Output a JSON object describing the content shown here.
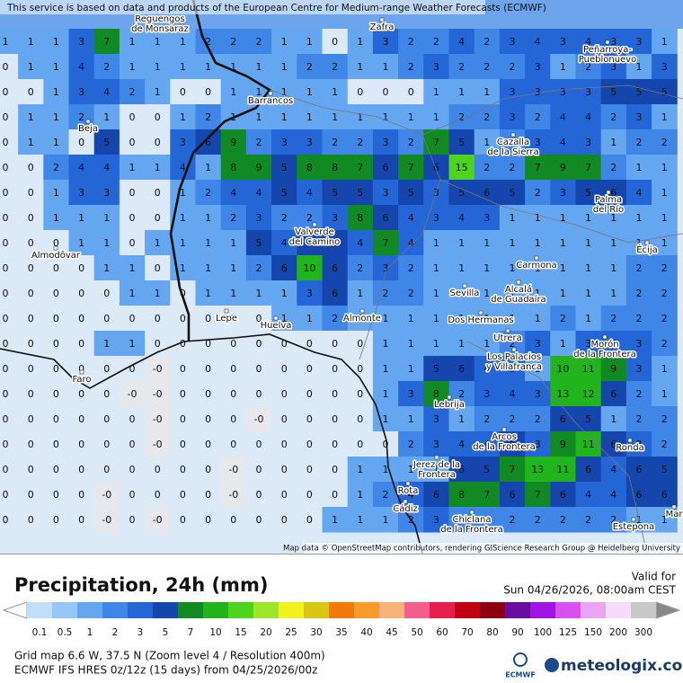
{
  "header": {
    "notice": "This service is based on data and products of the European Centre for Medium-range Weather Forecasts (ECMWF)"
  },
  "map": {
    "attribution": "Map data © OpenStreetMap contributors, rendering GIScience Research Group @ Heidelberg University",
    "grid": [
      [
        "1",
        "1",
        "1",
        "3",
        "7",
        "1",
        "1",
        "1",
        "2",
        "2",
        "2",
        "1",
        "1",
        "0",
        "1",
        "3",
        "2",
        "2",
        "4",
        "2",
        "3",
        "4",
        "3",
        "4",
        "3",
        "3",
        "1"
      ],
      [
        "0",
        "1",
        "1",
        "4",
        "2",
        "1",
        "1",
        "1",
        "1",
        "1",
        "1",
        "1",
        "2",
        "2",
        "1",
        "1",
        "2",
        "3",
        "2",
        "2",
        "2",
        "3",
        "1",
        "2",
        "3",
        "1",
        "3"
      ],
      [
        "0",
        "0",
        "1",
        "3",
        "4",
        "2",
        "1",
        "0",
        "0",
        "1",
        "1",
        "1",
        "1",
        "1",
        "0",
        "0",
        "0",
        "1",
        "1",
        "1",
        "3",
        "3",
        "3",
        "3",
        "5",
        "5",
        "5"
      ],
      [
        "0",
        "1",
        "1",
        "2",
        "1",
        "0",
        "0",
        "1",
        "2",
        "1",
        "1",
        "1",
        "1",
        "1",
        "1",
        "1",
        "1",
        "1",
        "2",
        "2",
        "3",
        "2",
        "4",
        "4",
        "2",
        "3",
        "1"
      ],
      [
        "0",
        "1",
        "1",
        "0",
        "5",
        "0",
        "0",
        "3",
        "6",
        "9",
        "2",
        "3",
        "3",
        "2",
        "2",
        "3",
        "2",
        "7",
        "5",
        "1",
        "2",
        "3",
        "4",
        "3",
        "1",
        "2",
        "2"
      ],
      [
        "0",
        "0",
        "2",
        "4",
        "4",
        "1",
        "1",
        "4",
        "1",
        "8",
        "9",
        "5",
        "8",
        "8",
        "7",
        "6",
        "7",
        "6",
        "15",
        "2",
        "2",
        "7",
        "9",
        "7",
        "2",
        "1",
        "1"
      ],
      [
        "0",
        "0",
        "1",
        "3",
        "3",
        "0",
        "0",
        "1",
        "2",
        "4",
        "4",
        "5",
        "4",
        "5",
        "5",
        "3",
        "5",
        "3",
        "5",
        "6",
        "5",
        "2",
        "3",
        "5",
        "6",
        "4",
        "1"
      ],
      [
        "0",
        "0",
        "1",
        "1",
        "1",
        "0",
        "0",
        "1",
        "1",
        "2",
        "3",
        "2",
        "2",
        "3",
        "8",
        "6",
        "4",
        "3",
        "4",
        "3",
        "1",
        "1",
        "1",
        "1",
        "1",
        "1",
        "1"
      ],
      [
        "0",
        "0",
        "0",
        "1",
        "1",
        "0",
        "1",
        "1",
        "1",
        "1",
        "5",
        "4",
        "5",
        "6",
        "4",
        "7",
        "4",
        "1",
        "1",
        "1",
        "1",
        "1",
        "1",
        "1",
        "1",
        "1",
        "1"
      ],
      [
        "0",
        "0",
        "0",
        "0",
        "1",
        "1",
        "0",
        "1",
        "1",
        "1",
        "2",
        "6",
        "10",
        "6",
        "2",
        "3",
        "2",
        "1",
        "1",
        "1",
        "1",
        "1",
        "1",
        "1",
        "1",
        "2",
        "2"
      ],
      [
        "0",
        "0",
        "0",
        "0",
        "0",
        "1",
        "1",
        "0",
        "1",
        "1",
        "1",
        "1",
        "3",
        "6",
        "1",
        "2",
        "2",
        "1",
        "1",
        "1",
        "1",
        "1",
        "1",
        "1",
        "1",
        "2",
        "2"
      ],
      [
        "0",
        "0",
        "0",
        "0",
        "0",
        "0",
        "0",
        "0",
        "0",
        "0",
        "0",
        "1",
        "1",
        "2",
        "1",
        "1",
        "1",
        "1",
        "1",
        "1",
        "1",
        "1",
        "2",
        "1",
        "2",
        "2",
        "2"
      ],
      [
        "0",
        "0",
        "0",
        "0",
        "1",
        "1",
        "0",
        "0",
        "0",
        "0",
        "0",
        "0",
        "0",
        "0",
        "0",
        "1",
        "1",
        "1",
        "1",
        "1",
        "2",
        "3",
        "1",
        "3",
        "4",
        "3",
        "2"
      ],
      [
        "0",
        "0",
        "0",
        "0",
        "0",
        "0",
        "-0",
        "0",
        "0",
        "0",
        "0",
        "0",
        "0",
        "0",
        "0",
        "1",
        "1",
        "5",
        "6",
        "4",
        "3",
        "1",
        "10",
        "11",
        "9",
        "3",
        "1"
      ],
      [
        "0",
        "0",
        "0",
        "0",
        "0",
        "-0",
        "-0",
        "0",
        "0",
        "0",
        "0",
        "0",
        "0",
        "0",
        "0",
        "1",
        "3",
        "8",
        "2",
        "3",
        "4",
        "3",
        "13",
        "12",
        "6",
        "2",
        "1"
      ],
      [
        "0",
        "0",
        "0",
        "0",
        "0",
        "0",
        "-0",
        "0",
        "0",
        "0",
        "-0",
        "0",
        "0",
        "0",
        "0",
        "1",
        "1",
        "3",
        "1",
        "2",
        "2",
        "2",
        "6",
        "5",
        "1",
        "2",
        "2"
      ],
      [
        "0",
        "0",
        "0",
        "0",
        "0",
        "0",
        "-0",
        "0",
        "0",
        "0",
        "0",
        "0",
        "0",
        "0",
        "0",
        "0",
        "2",
        "3",
        "4",
        "4",
        "6",
        "3",
        "9",
        "11",
        "6",
        "3",
        "2"
      ],
      [
        "0",
        "0",
        "0",
        "0",
        "0",
        "0",
        "0",
        "0",
        "0",
        "-0",
        "0",
        "0",
        "0",
        "0",
        "1",
        "1",
        "1",
        "1",
        "6",
        "5",
        "7",
        "13",
        "11",
        "6",
        "4",
        "6",
        "5"
      ],
      [
        "0",
        "0",
        "0",
        "0",
        "-0",
        "0",
        "0",
        "0",
        "0",
        "-0",
        "0",
        "0",
        "0",
        "0",
        "1",
        "2",
        "4",
        "6",
        "8",
        "7",
        "6",
        "7",
        "6",
        "4",
        "4",
        "6",
        "6"
      ],
      [
        "0",
        "0",
        "0",
        "0",
        "-0",
        "0",
        "-0",
        "0",
        "0",
        "0",
        "0",
        "0",
        "0",
        "1",
        "1",
        "1",
        "2",
        "3",
        "2",
        "2",
        "2",
        "2",
        "2",
        "2",
        "2",
        "1",
        "1"
      ]
    ],
    "places": [
      {
        "lines": [
          "Reguengos",
          "de Monsaraz"
        ]
      },
      {
        "lines": [
          "Zafra"
        ]
      },
      {
        "lines": [
          "Peñarroya-",
          "Pueblonuevo"
        ]
      },
      {
        "lines": [
          "Barrancos"
        ]
      },
      {
        "lines": [
          "Beja"
        ]
      },
      {
        "lines": [
          "Cazalla",
          "de la Sierra"
        ]
      },
      {
        "lines": [
          "Palma",
          "del Río"
        ]
      },
      {
        "lines": [
          "Valverde",
          "del Camino"
        ]
      },
      {
        "lines": [
          "Écija"
        ]
      },
      {
        "lines": [
          "Almodôvar"
        ]
      },
      {
        "lines": [
          "Carmona"
        ]
      },
      {
        "lines": [
          "Sevilla"
        ]
      },
      {
        "lines": [
          "Alcalá",
          "de Guadaíra"
        ]
      },
      {
        "lines": [
          "Lepe"
        ]
      },
      {
        "lines": [
          "Huelva"
        ]
      },
      {
        "lines": [
          "Almonte"
        ]
      },
      {
        "lines": [
          "Dos Hermanas"
        ]
      },
      {
        "lines": [
          "Utrera"
        ]
      },
      {
        "lines": [
          "Morón",
          "de la Frontera"
        ]
      },
      {
        "lines": [
          "Los Palacios",
          "y Villafranca"
        ]
      },
      {
        "lines": [
          "Faro"
        ]
      },
      {
        "lines": [
          "Lebrija"
        ]
      },
      {
        "lines": [
          "Arcos",
          "de la Frontera"
        ]
      },
      {
        "lines": [
          "Ronda"
        ]
      },
      {
        "lines": [
          "Jerez de la",
          "Frontera"
        ]
      },
      {
        "lines": [
          "Rota"
        ]
      },
      {
        "lines": [
          "Cádiz"
        ]
      },
      {
        "lines": [
          "Chiclana",
          "de la Frontera"
        ]
      },
      {
        "lines": [
          "Estepona"
        ]
      },
      {
        "lines": [
          "Mar"
        ]
      }
    ]
  },
  "panel": {
    "title": "Precipitation, 24h (mm)",
    "valid_label": "Valid for",
    "valid_time": "Sun 04/26/2026, 08:00am CEST",
    "legend": [
      {
        "label": "0.1",
        "color": "#c3defa"
      },
      {
        "label": "0.5",
        "color": "#96c6f6"
      },
      {
        "label": "1",
        "color": "#65a6f0"
      },
      {
        "label": "2",
        "color": "#3f86e6"
      },
      {
        "label": "3",
        "color": "#2566d6"
      },
      {
        "label": "5",
        "color": "#1446ae"
      },
      {
        "label": "7",
        "color": "#128a24"
      },
      {
        "label": "10",
        "color": "#22b41c"
      },
      {
        "label": "15",
        "color": "#4cd41e"
      },
      {
        "label": "20",
        "color": "#9ee62a"
      },
      {
        "label": "25",
        "color": "#f2f21e"
      },
      {
        "label": "30",
        "color": "#d8c812"
      },
      {
        "label": "35",
        "color": "#f27a0a"
      },
      {
        "label": "40",
        "color": "#f89a2c"
      },
      {
        "label": "45",
        "color": "#f8b27a"
      },
      {
        "label": "50",
        "color": "#f2608a"
      },
      {
        "label": "60",
        "color": "#e81e4e"
      },
      {
        "label": "70",
        "color": "#c2000e"
      },
      {
        "label": "80",
        "color": "#8c0010"
      },
      {
        "label": "90",
        "color": "#6a0ca0"
      },
      {
        "label": "100",
        "color": "#a014e6"
      },
      {
        "label": "125",
        "color": "#d850f0"
      },
      {
        "label": "150",
        "color": "#eba4f4"
      },
      {
        "label": "200",
        "color": "#f6dcfa"
      },
      {
        "label": "300",
        "color": "#c8c8c8"
      }
    ],
    "grid_info": "Grid map 6.6 W, 37.5 N (Zoom level 4 / Resolution 400m)",
    "model_info": "ECMWF IFS HRES 0z/12z (15 days) from 04/25/2026/00z",
    "ecmwf_logo": "ECMWF",
    "brand": "meteologix.com"
  }
}
